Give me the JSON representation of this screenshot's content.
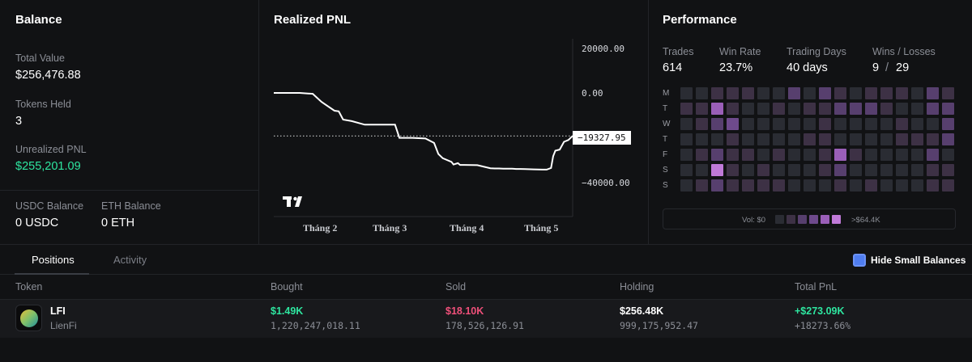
{
  "balance": {
    "title": "Balance",
    "total_value_label": "Total Value",
    "total_value": "$256,476.88",
    "tokens_held_label": "Tokens Held",
    "tokens_held": "3",
    "unrealized_pnl_label": "Unrealized PNL",
    "unrealized_pnl": "$255,201.09",
    "usdc_label": "USDC Balance",
    "usdc_value": "0 USDC",
    "eth_label": "ETH Balance",
    "eth_value": "0 ETH"
  },
  "pnl": {
    "title": "Realized PNL",
    "current_value": "−19327.95"
  },
  "chart_data": {
    "type": "line",
    "title": "Realized PNL",
    "ytick_labels": [
      "20000.00",
      "0.00",
      "−40000.00"
    ],
    "xtick_labels": [
      "Tháng 2",
      "Tháng 3",
      "Tháng 4",
      "Tháng 5"
    ],
    "ylim": [
      -55000,
      25000
    ],
    "last_value": -19327.95,
    "x": [
      0,
      6,
      9,
      11,
      14,
      15,
      16,
      18,
      21,
      28,
      29,
      32,
      35,
      37,
      38,
      39,
      41,
      41.5,
      42.5,
      43,
      44,
      47,
      50,
      51,
      52,
      53,
      55,
      56,
      57,
      58,
      60,
      62,
      63,
      64,
      64.5,
      65,
      66,
      67,
      68,
      69
    ],
    "values": [
      0,
      0,
      -400,
      -4000,
      -8000,
      -8300,
      -12000,
      -12700,
      -14300,
      -14300,
      -20200,
      -20200,
      -20500,
      -22500,
      -27500,
      -29400,
      -31000,
      -32200,
      -31600,
      -32400,
      -32400,
      -32500,
      -33900,
      -34000,
      -34000,
      -34100,
      -34100,
      -34200,
      -34200,
      -34300,
      -34400,
      -34500,
      -34500,
      -33800,
      -28500,
      -26000,
      -25500,
      -22000,
      -21200,
      -19327.95
    ]
  },
  "performance": {
    "title": "Performance",
    "trades_label": "Trades",
    "trades": "614",
    "win_rate_label": "Win Rate",
    "win_rate": "23.7%",
    "trading_days_label": "Trading Days",
    "trading_days": "40 days",
    "wins_losses_label": "Wins / Losses",
    "wins": "9",
    "separator": "/",
    "losses": "29",
    "day_labels": [
      "M",
      "T",
      "W",
      "T",
      "F",
      "S",
      "S"
    ],
    "vol_min": "Vol: $0",
    "vol_max": ">$64.4K",
    "heat_colors": [
      "#2a2c33",
      "#3d3145",
      "#573f6e",
      "#6e4a8c",
      "#9a5fb8",
      "#c07ad8"
    ],
    "heatmap_levels": [
      [
        0,
        0,
        1,
        1,
        1,
        0,
        0,
        2,
        0,
        2,
        1,
        0,
        1,
        1,
        1,
        0,
        2,
        1
      ],
      [
        1,
        1,
        4,
        1,
        0,
        0,
        1,
        0,
        1,
        1,
        2,
        2,
        2,
        1,
        0,
        0,
        2,
        2
      ],
      [
        0,
        1,
        2,
        3,
        0,
        0,
        0,
        0,
        0,
        1,
        0,
        0,
        0,
        0,
        1,
        0,
        0,
        2
      ],
      [
        0,
        0,
        0,
        1,
        0,
        0,
        0,
        0,
        1,
        1,
        0,
        0,
        0,
        0,
        1,
        1,
        1,
        2
      ],
      [
        0,
        1,
        2,
        1,
        1,
        0,
        1,
        0,
        0,
        1,
        4,
        1,
        0,
        0,
        0,
        0,
        2,
        0
      ],
      [
        0,
        0,
        5,
        1,
        0,
        1,
        0,
        0,
        0,
        1,
        2,
        0,
        0,
        0,
        0,
        0,
        1,
        1
      ],
      [
        0,
        1,
        2,
        1,
        1,
        1,
        1,
        0,
        0,
        0,
        1,
        0,
        1,
        0,
        0,
        0,
        1,
        1
      ]
    ]
  },
  "tabs": {
    "positions": "Positions",
    "activity": "Activity",
    "hide_small": "Hide Small Balances"
  },
  "table": {
    "headers": [
      "Token",
      "Bought",
      "Sold",
      "Holding",
      "Total PnL"
    ],
    "rows": [
      {
        "symbol": "LFI",
        "name": "LienFi",
        "bought_usd": "$1.49K",
        "bought_amount": "1,220,247,018.11",
        "sold_usd": "$18.10K",
        "sold_amount": "178,526,126.91",
        "holding_usd": "$256.48K",
        "holding_amount": "999,175,952.47",
        "pnl_usd": "+$273.09K",
        "pnl_pct": "+18273.66%"
      }
    ]
  }
}
